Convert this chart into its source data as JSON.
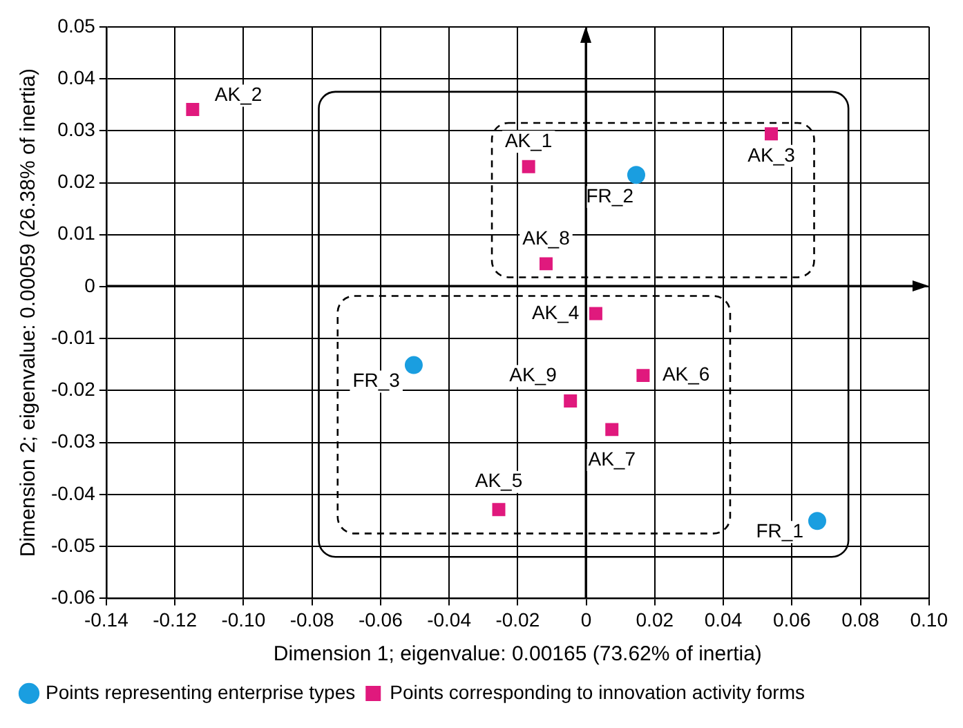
{
  "chart_data": {
    "type": "scatter",
    "xlabel": "Dimension 1; eigenvalue: 0.00165 (73.62% of inertia)",
    "ylabel": "Dimension 2; eigenvalue: 0.00059 (26.38% of inertia)",
    "xlim": [
      -0.14,
      0.1
    ],
    "xticks": [
      -0.14,
      -0.12,
      {
        "value": -0.1,
        "label": "-0.10"
      },
      -0.08,
      -0.06,
      -0.04,
      -0.02,
      0,
      0.02,
      0.04,
      0.06,
      0.08,
      {
        "value": 0.1,
        "label": "0.10"
      }
    ],
    "ylim": [
      -0.06,
      0.05
    ],
    "yticks": [
      -0.06,
      -0.05,
      -0.04,
      -0.03,
      -0.02,
      -0.01,
      0,
      0.01,
      0.02,
      0.03,
      0.04,
      0.05
    ],
    "grid": true,
    "legend": "bottom",
    "series": [
      {
        "name": "Points representing enterprise types",
        "color": "#1a9ee0",
        "marker": "circle",
        "x": [
          0.0674,
          0.0146,
          -0.0503
        ],
        "values": [
          -0.0451,
          0.0215,
          -0.0151
        ]
      },
      {
        "name": "Points corresponding to innovation activity forms",
        "color": "#e0197d",
        "marker": "square",
        "x": [
          -0.0168,
          -0.1148,
          0.054,
          0.0028,
          -0.0255,
          0.0166,
          0.0075,
          -0.0117,
          -0.0046
        ],
        "values": [
          0.0231,
          0.0341,
          0.0294,
          -0.0052,
          -0.0429,
          -0.0171,
          -0.0275,
          0.0044,
          -0.022
        ]
      }
    ],
    "annotations": [
      {
        "text": "FR_1",
        "x": 0.0674,
        "y": -0.0451
      },
      {
        "text": "FR_2",
        "x": 0.0146,
        "y": 0.0215
      },
      {
        "text": "FR_3",
        "x": -0.0503,
        "y": -0.0151
      },
      {
        "text": "AK_1",
        "x": -0.0168,
        "y": 0.0231
      },
      {
        "text": "AK_2",
        "x": -0.1148,
        "y": 0.0341
      },
      {
        "text": "AK_3",
        "x": 0.054,
        "y": 0.0294
      },
      {
        "text": "AK_4",
        "x": 0.0028,
        "y": -0.0052
      },
      {
        "text": "AK_5",
        "x": -0.0255,
        "y": -0.0429
      },
      {
        "text": "AK_6",
        "x": 0.0166,
        "y": -0.0171
      },
      {
        "text": "AK_7",
        "x": 0.0075,
        "y": -0.0275
      },
      {
        "text": "AK_8",
        "x": -0.0117,
        "y": 0.0044
      },
      {
        "text": "AK_9",
        "x": -0.0046,
        "y": -0.022
      }
    ]
  }
}
